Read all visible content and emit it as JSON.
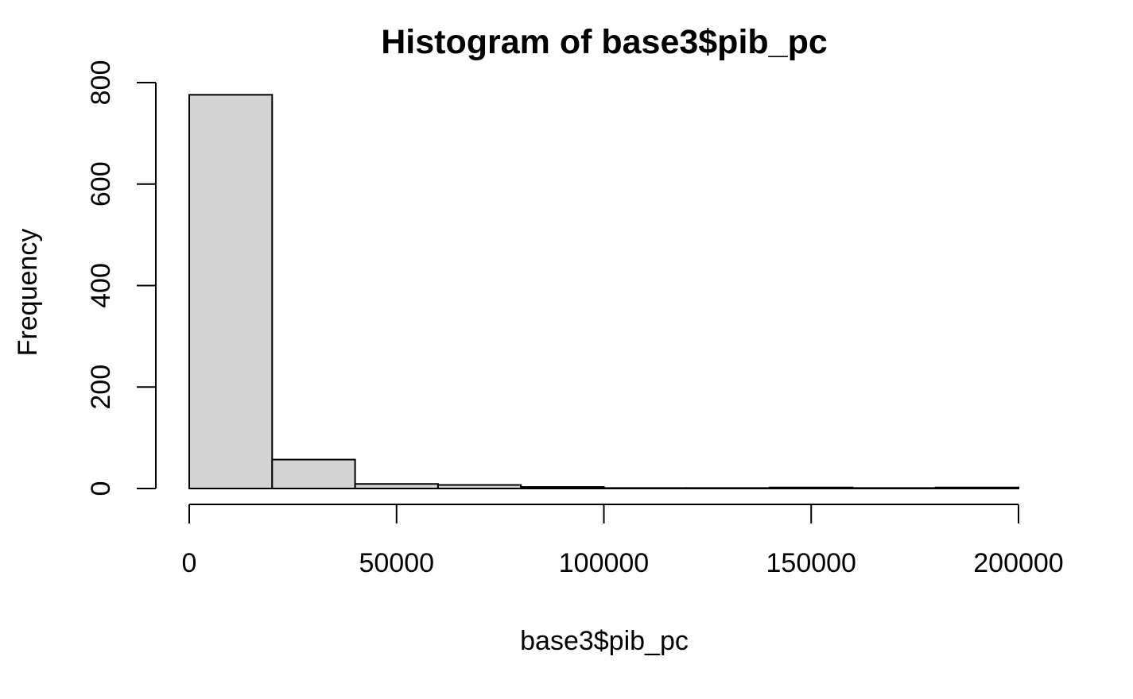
{
  "chart_data": {
    "type": "bar",
    "title": "Histogram of base3$pib_pc",
    "xlabel": "base3$pib_pc",
    "ylabel": "Frequency",
    "bin_edges": [
      0,
      20000,
      40000,
      60000,
      80000,
      100000,
      120000,
      140000,
      160000,
      180000,
      200000
    ],
    "values": [
      776,
      57,
      9,
      7,
      3,
      1,
      1,
      2,
      1,
      2
    ],
    "xlim": [
      0,
      200000
    ],
    "ylim": [
      0,
      800
    ],
    "x_ticks": [
      0,
      50000,
      100000,
      150000,
      200000
    ],
    "x_tick_labels": [
      "0",
      "50000",
      "100000",
      "150000",
      "200000"
    ],
    "y_ticks": [
      0,
      200,
      400,
      600,
      800
    ],
    "y_tick_labels": [
      "0",
      "200",
      "400",
      "600",
      "800"
    ],
    "bar_fill": "#d3d3d3",
    "bar_stroke": "#000000",
    "grid": false,
    "legend": "none"
  }
}
